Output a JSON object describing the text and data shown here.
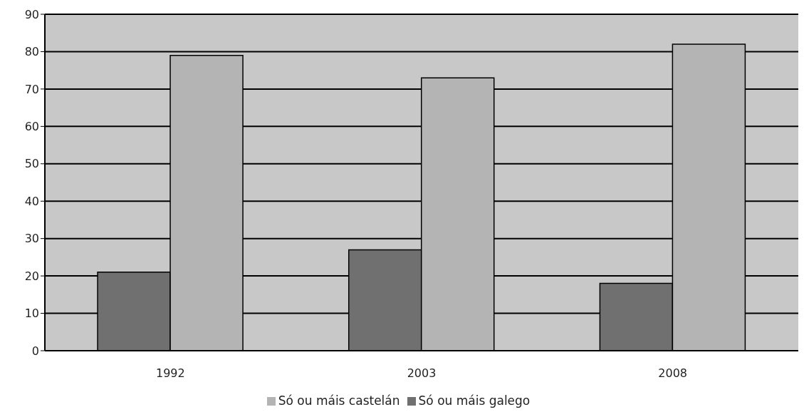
{
  "chart_data": {
    "type": "bar",
    "categories": [
      "1992",
      "2003",
      "2008"
    ],
    "series": [
      {
        "name": "Só ou máis galego",
        "color": "#707070",
        "values": [
          21,
          27,
          18
        ]
      },
      {
        "name": "Só ou máis castelán",
        "color": "#b4b4b4",
        "values": [
          79,
          73,
          82
        ]
      }
    ],
    "ylim": [
      0,
      90
    ],
    "yticks": [
      0,
      10,
      20,
      30,
      40,
      50,
      60,
      70,
      80,
      90
    ],
    "grid": "y",
    "legend": "bottom"
  }
}
